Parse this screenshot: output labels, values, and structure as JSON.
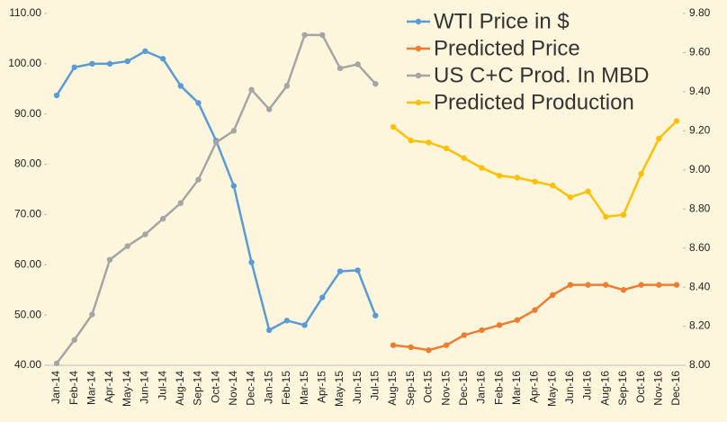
{
  "chart_data": {
    "type": "line",
    "categories": [
      "Jan-14",
      "Feb-14",
      "Mar-14",
      "Apr-14",
      "May-14",
      "Jun-14",
      "Jul-14",
      "Aug-14",
      "Sep-14",
      "Oct-14",
      "Nov-14",
      "Dec-14",
      "Jan-15",
      "Feb-15",
      "Mar-15",
      "Apr-15",
      "May-15",
      "Jun-15",
      "Jul-15",
      "Aug-15",
      "Sep-15",
      "Oct-15",
      "Nov-15",
      "Dec-15",
      "Jan-16",
      "Feb-16",
      "Mar-16",
      "Apr-16",
      "May-16",
      "Jun-16",
      "Jul-16",
      "Aug-16",
      "Sep-16",
      "Oct-16",
      "Nov-16",
      "Dec-16"
    ],
    "series": [
      {
        "name": "WTI Price in $",
        "color": "#5b9bd5",
        "axis": "y",
        "values": [
          93.7,
          99.3,
          100.0,
          100.0,
          100.5,
          102.5,
          101.0,
          95.6,
          92.2,
          84.7,
          75.7,
          60.5,
          47.0,
          48.9,
          48.0,
          53.5,
          58.7,
          58.9,
          49.9,
          null,
          null,
          null,
          null,
          null,
          null,
          null,
          null,
          null,
          null,
          null,
          null,
          null,
          null,
          null,
          null,
          null
        ]
      },
      {
        "name": "Predicted Price",
        "color": "#ed7d31",
        "axis": "y",
        "values": [
          null,
          null,
          null,
          null,
          null,
          null,
          null,
          null,
          null,
          null,
          null,
          null,
          null,
          null,
          null,
          null,
          null,
          null,
          null,
          44.0,
          43.6,
          43.0,
          44.0,
          46.0,
          47.0,
          48.0,
          49.0,
          51.0,
          54.0,
          56.0,
          56.0,
          56.0,
          55.0,
          56.0,
          56.0,
          56.0
        ]
      },
      {
        "name": "US C+C Prod. In MBD",
        "color": "#a5a5a5",
        "axis": "y2",
        "values": [
          8.01,
          8.13,
          8.26,
          8.54,
          8.61,
          8.67,
          8.75,
          8.83,
          8.95,
          9.14,
          9.2,
          9.41,
          9.31,
          9.43,
          9.69,
          9.69,
          9.52,
          9.54,
          9.44,
          null,
          null,
          null,
          null,
          null,
          null,
          null,
          null,
          null,
          null,
          null,
          null,
          null,
          null,
          null,
          null,
          null
        ]
      },
      {
        "name": "Predicted Production",
        "color": "#ffc000",
        "axis": "y2",
        "values": [
          null,
          null,
          null,
          null,
          null,
          null,
          null,
          null,
          null,
          null,
          null,
          null,
          null,
          null,
          null,
          null,
          null,
          null,
          null,
          9.22,
          9.15,
          9.14,
          9.11,
          9.06,
          9.01,
          8.97,
          8.96,
          8.94,
          8.92,
          8.86,
          8.89,
          8.76,
          8.77,
          8.98,
          9.16,
          9.25
        ]
      }
    ],
    "ylim": [
      40,
      110
    ],
    "yticks": [
      {
        "value": 40,
        "label": "40.00"
      },
      {
        "value": 50,
        "label": "50.00"
      },
      {
        "value": 60,
        "label": "60.00"
      },
      {
        "value": 70,
        "label": "70.00"
      },
      {
        "value": 80,
        "label": "80.00"
      },
      {
        "value": 90,
        "label": "90.00"
      },
      {
        "value": 100,
        "label": "100.00"
      },
      {
        "value": 110,
        "label": "110.00"
      }
    ],
    "y2lim": [
      8.0,
      9.8
    ],
    "y2ticks": [
      {
        "value": 8.0,
        "label": "8.00"
      },
      {
        "value": 8.2,
        "label": "8.20"
      },
      {
        "value": 8.4,
        "label": "8.40"
      },
      {
        "value": 8.6,
        "label": "8.60"
      },
      {
        "value": 8.8,
        "label": "8.80"
      },
      {
        "value": 9.0,
        "label": "9.00"
      },
      {
        "value": 9.2,
        "label": "9.20"
      },
      {
        "value": 9.4,
        "label": "9.40"
      },
      {
        "value": 9.6,
        "label": "9.60"
      },
      {
        "value": 9.8,
        "label": "9.80"
      }
    ],
    "legend": "top-right"
  }
}
